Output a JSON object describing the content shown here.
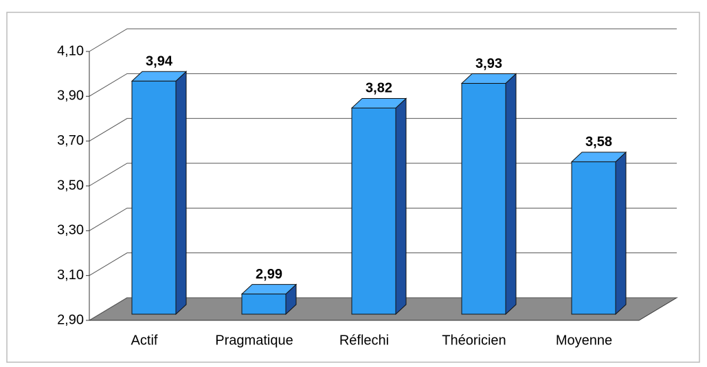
{
  "chart_data": {
    "type": "bar3d",
    "categories": [
      "Actif",
      "Pragmatique",
      "Réflechi",
      "Théoricien",
      "Moyenne"
    ],
    "values": [
      3.94,
      2.99,
      3.82,
      3.93,
      3.58
    ],
    "value_labels": [
      "3,94",
      "2,99",
      "3,82",
      "3,93",
      "3,58"
    ],
    "color": "#2e9bf0",
    "ylim": [
      2.9,
      4.1
    ],
    "yticks": [
      {
        "value": 2.9,
        "label": "2,90"
      },
      {
        "value": 3.1,
        "label": "3,10"
      },
      {
        "value": 3.3,
        "label": "3,30"
      },
      {
        "value": 3.5,
        "label": "3,50"
      },
      {
        "value": 3.7,
        "label": "3,70"
      },
      {
        "value": 3.9,
        "label": "3,90"
      },
      {
        "value": 4.1,
        "label": "4,10"
      }
    ],
    "grid": true
  }
}
